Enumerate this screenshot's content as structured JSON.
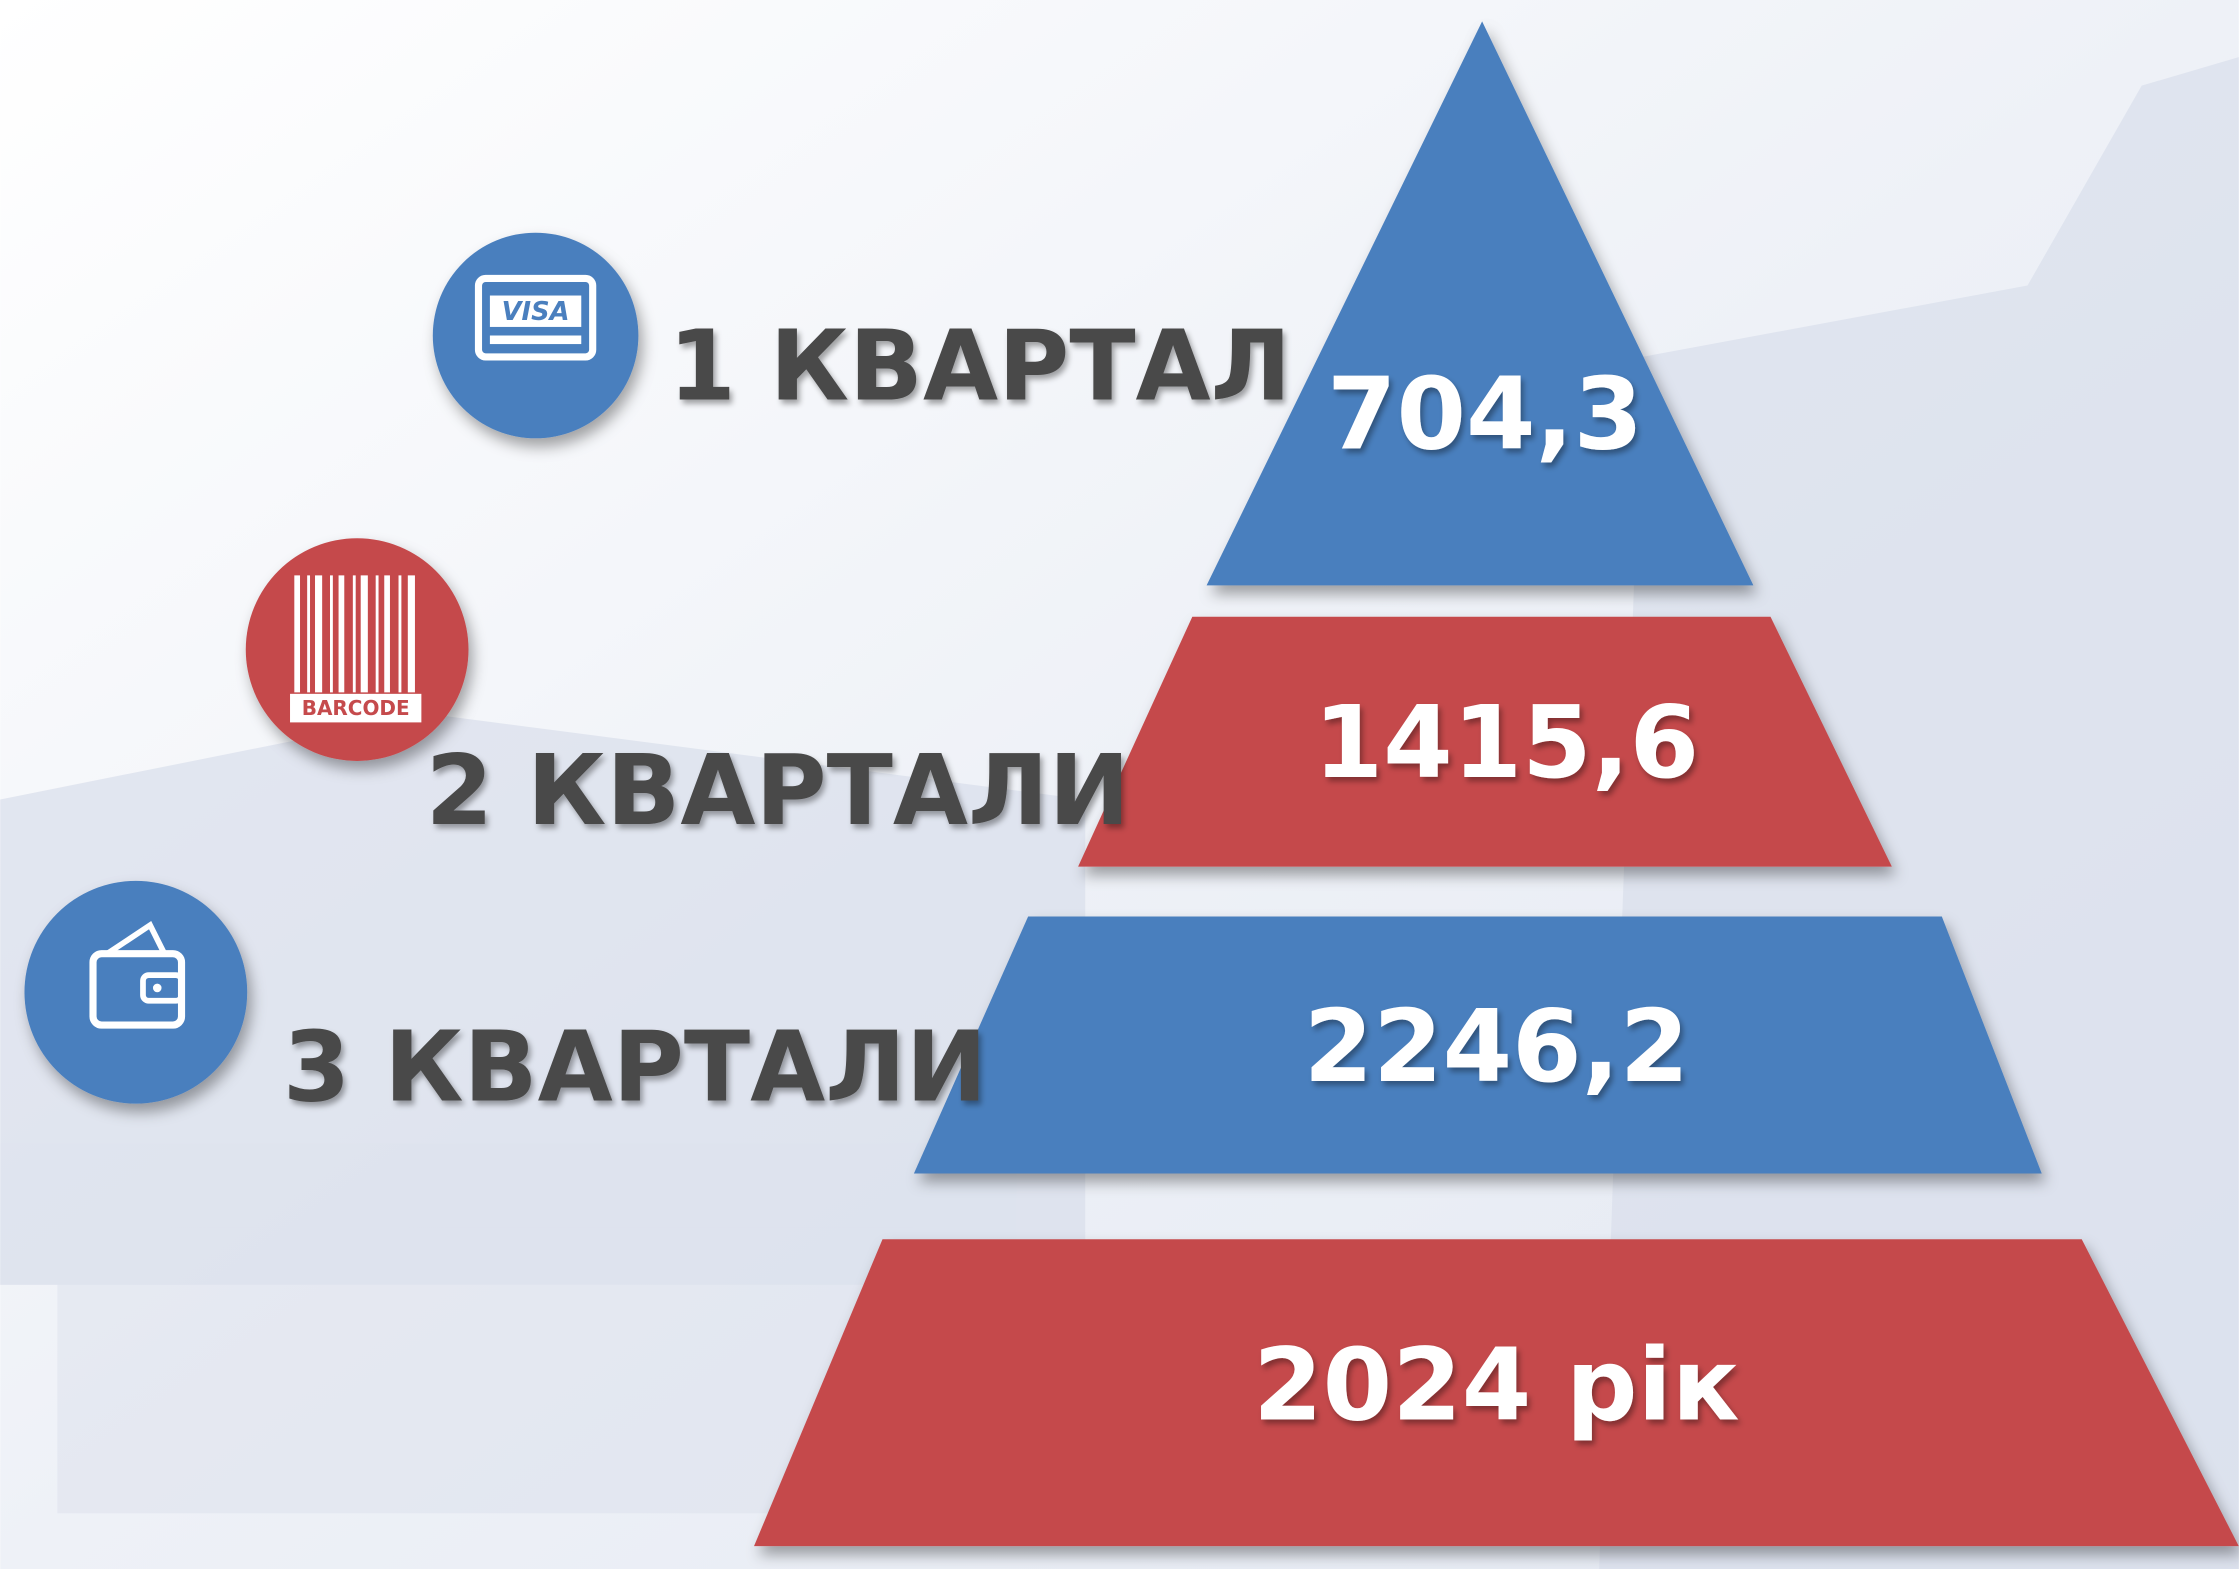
{
  "levels": [
    {
      "label": "1 КВАРТАЛ",
      "value": "704,3"
    },
    {
      "label": "2 КВАРТАЛИ",
      "value": "1415,6"
    },
    {
      "label": "3 КВАРТАЛИ",
      "value": "2246,2"
    },
    {
      "value": "2024 рік"
    }
  ],
  "icons": [
    {
      "label": "VISA"
    },
    {
      "label": "BARCODE"
    }
  ]
}
